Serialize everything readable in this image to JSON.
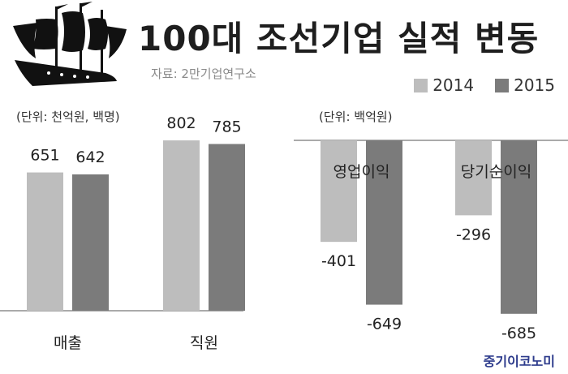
{
  "header": {
    "title": "100대 조선기업 실적 변동",
    "source": "자료: 2만기업연구소"
  },
  "legend": [
    {
      "label": "2014",
      "color": "#bdbdbd"
    },
    {
      "label": "2015",
      "color": "#7b7b7b"
    }
  ],
  "brand": "중기이코노미",
  "colors": {
    "y2014": "#bdbdbd",
    "y2015": "#7b7b7b"
  },
  "chart_data": [
    {
      "type": "bar",
      "unit_label": "(단위: 천억원, 백명)",
      "categories": [
        "매출",
        "직원"
      ],
      "series": [
        {
          "name": "2014",
          "values": [
            651,
            802
          ]
        },
        {
          "name": "2015",
          "values": [
            642,
            785
          ]
        }
      ],
      "ylim": [
        0,
        900
      ]
    },
    {
      "type": "bar",
      "unit_label": "(단위: 백억원)",
      "categories": [
        "영업이익",
        "당기순이익"
      ],
      "series": [
        {
          "name": "2014",
          "values": [
            -401,
            -296
          ]
        },
        {
          "name": "2015",
          "values": [
            -649,
            -685
          ]
        }
      ],
      "ylim": [
        -700,
        0
      ]
    }
  ]
}
